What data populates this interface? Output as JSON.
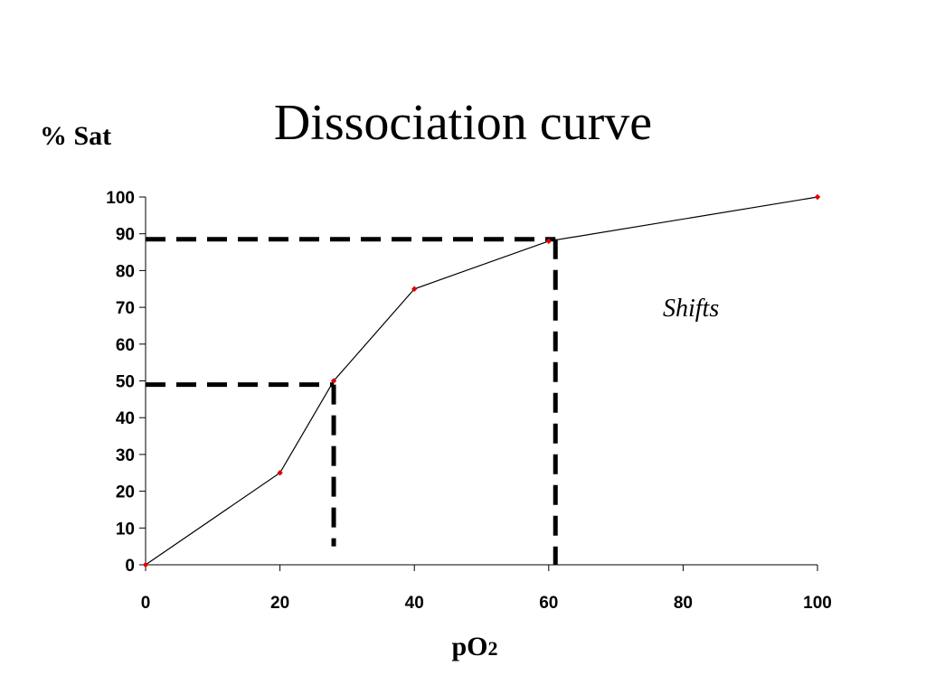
{
  "slide": {
    "title": "Dissociation curve"
  },
  "chart_data": {
    "type": "line",
    "title": "Dissociation curve",
    "xlabel_main": "pO",
    "xlabel_sub": "2",
    "ylabel": "% Sat",
    "x": [
      0,
      20,
      28,
      40,
      60,
      100
    ],
    "y": [
      0,
      25,
      50,
      75,
      88,
      100
    ],
    "xlim": [
      0,
      100
    ],
    "ylim": [
      0,
      100
    ],
    "xticks": [
      0,
      20,
      40,
      60,
      80,
      100
    ],
    "yticks": [
      0,
      10,
      20,
      30,
      40,
      50,
      60,
      70,
      80,
      90,
      100
    ],
    "grid": false,
    "legend": "none",
    "line_color": "#000000",
    "marker_color": "#e00000",
    "annotation": "Shifts",
    "reference_lines": [
      {
        "name": "p50",
        "x": 28,
        "y": 49,
        "y_bottom": 5
      },
      {
        "name": "p88",
        "x": 61,
        "y": 88.5,
        "y_bottom": 0
      }
    ]
  }
}
